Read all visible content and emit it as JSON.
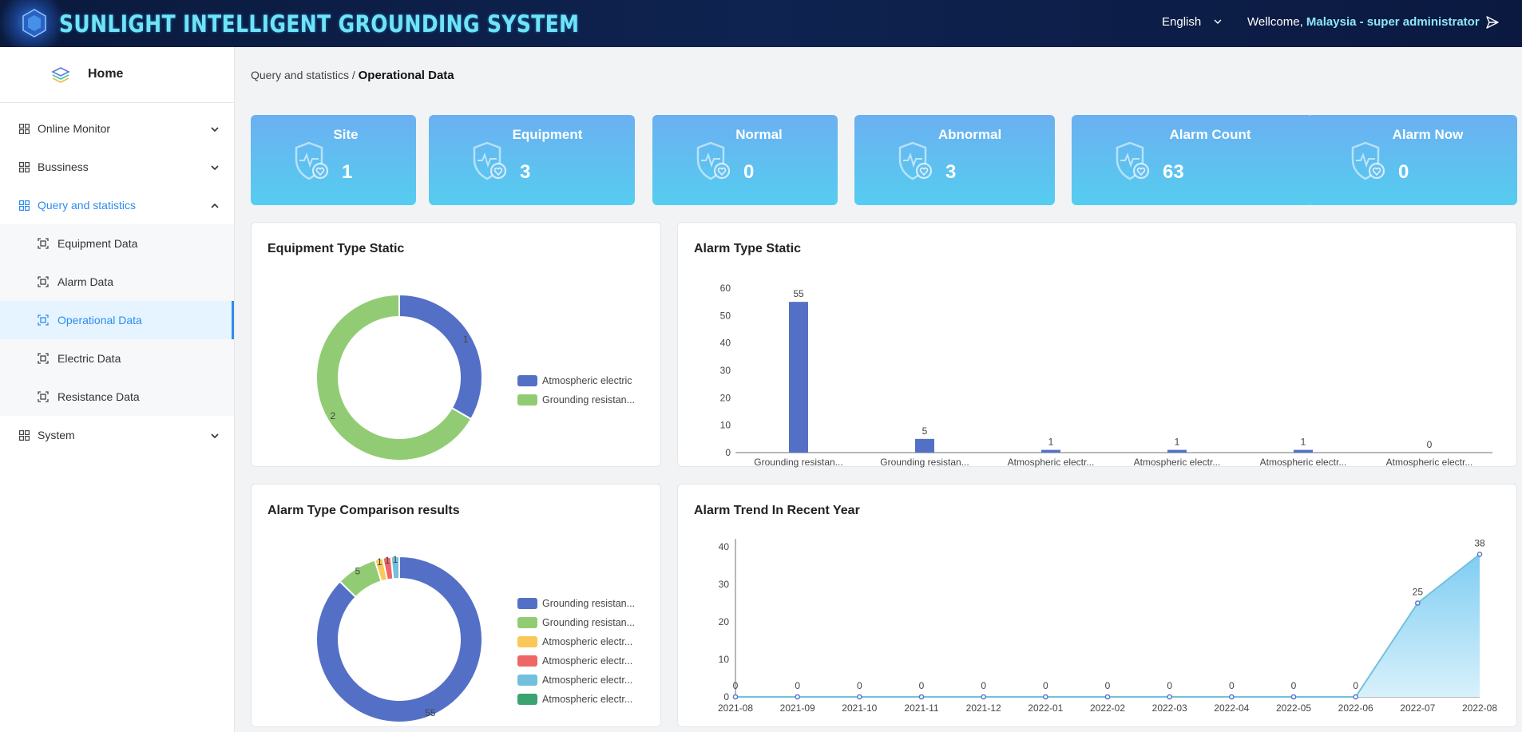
{
  "header": {
    "title": "SUNLIGHT INTELLIGENT GROUNDING SYSTEM",
    "language": "English",
    "welcome_prefix": "Wellcome,",
    "welcome_user": "Malaysia - super administrator"
  },
  "sidebar": {
    "home": "Home",
    "items": [
      {
        "label": "Online Monitor",
        "chevron": "down"
      },
      {
        "label": "Bussiness",
        "chevron": "down"
      },
      {
        "label": "Query and statistics",
        "chevron": "up",
        "open": true,
        "children": [
          {
            "label": "Equipment Data"
          },
          {
            "label": "Alarm Data"
          },
          {
            "label": "Operational Data",
            "active": true
          },
          {
            "label": "Electric Data"
          },
          {
            "label": "Resistance Data"
          }
        ]
      },
      {
        "label": "System",
        "chevron": "down"
      }
    ]
  },
  "breadcrumb": {
    "parent": "Query and statistics /",
    "current": "Operational Data"
  },
  "stats": [
    {
      "label": "Site",
      "value": "1"
    },
    {
      "label": "Equipment",
      "value": "3"
    },
    {
      "label": "Normal",
      "value": "0"
    },
    {
      "label": "Abnormal",
      "value": "3"
    },
    {
      "label": "Alarm Count",
      "value": "63"
    },
    {
      "label": "Alarm Now",
      "value": "0"
    }
  ],
  "colors": {
    "accent": "#2d8cf0",
    "blue": "#5470c6",
    "green": "#91cc75",
    "yellow": "#fac858",
    "red": "#ee6666",
    "cyan": "#73c0de",
    "teal": "#3ba272",
    "area": "#8dd3f3"
  },
  "chart_data": [
    {
      "type": "pie",
      "title": "Equipment Type Static",
      "slices": [
        {
          "name": "Atmospheric electric",
          "value": 1,
          "color": "#5470c6"
        },
        {
          "name": "Grounding resistan...",
          "value": 2,
          "color": "#91cc75"
        }
      ]
    },
    {
      "type": "bar",
      "title": "Alarm Type Static",
      "categories": [
        "Grounding resistan...",
        "Grounding resistan...",
        "Atmospheric electr...",
        "Atmospheric electr...",
        "Atmospheric electr...",
        "Atmospheric electr..."
      ],
      "values": [
        55,
        5,
        1,
        1,
        1,
        0
      ],
      "ylim": [
        0,
        60
      ],
      "yticks": [
        0,
        10,
        20,
        30,
        40,
        50,
        60
      ]
    },
    {
      "type": "pie",
      "title": "Alarm Type Comparison results",
      "slices": [
        {
          "name": "Grounding resistan...",
          "value": 55,
          "color": "#5470c6"
        },
        {
          "name": "Grounding resistan...",
          "value": 5,
          "color": "#91cc75"
        },
        {
          "name": "Atmospheric electr...",
          "value": 1,
          "color": "#fac858"
        },
        {
          "name": "Atmospheric electr...",
          "value": 1,
          "color": "#ee6666"
        },
        {
          "name": "Atmospheric electr...",
          "value": 1,
          "color": "#73c0de"
        },
        {
          "name": "Atmospheric electr...",
          "value": 0,
          "color": "#3ba272"
        }
      ]
    },
    {
      "type": "area",
      "title": "Alarm Trend In Recent Year",
      "x": [
        "2021-08",
        "2021-09",
        "2021-10",
        "2021-11",
        "2021-12",
        "2022-01",
        "2022-02",
        "2022-03",
        "2022-04",
        "2022-05",
        "2022-06",
        "2022-07",
        "2022-08"
      ],
      "values": [
        0,
        0,
        0,
        0,
        0,
        0,
        0,
        0,
        0,
        0,
        0,
        25,
        38
      ],
      "ylim": [
        0,
        40
      ],
      "yticks": [
        0,
        10,
        20,
        30,
        40
      ]
    }
  ]
}
